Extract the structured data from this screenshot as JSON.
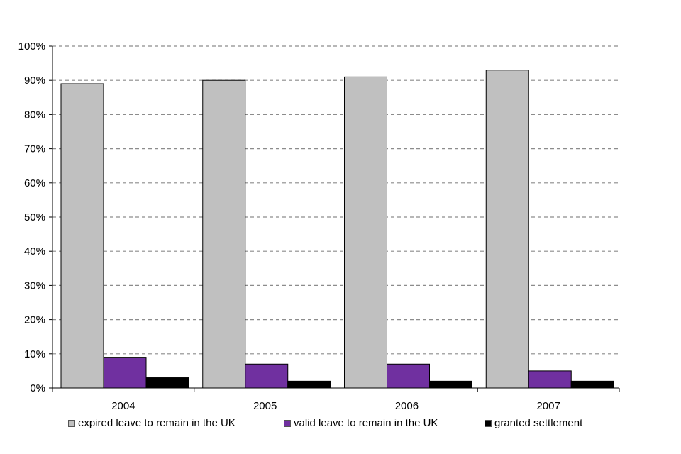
{
  "chart_data": {
    "type": "bar",
    "categories": [
      "2004",
      "2005",
      "2006",
      "2007"
    ],
    "series": [
      {
        "name": "expired leave to remain in the UK",
        "values": [
          89,
          90,
          91,
          93
        ],
        "color": "#c0c0c0"
      },
      {
        "name": "valid leave to remain in the UK",
        "values": [
          9,
          7,
          7,
          5
        ],
        "color": "#7030a0"
      },
      {
        "name": "granted settlement",
        "values": [
          3,
          2,
          2,
          2
        ],
        "color": "#000000"
      }
    ],
    "ylim": [
      0,
      100
    ],
    "yticks": [
      "0%",
      "10%",
      "20%",
      "30%",
      "40%",
      "50%",
      "60%",
      "70%",
      "80%",
      "90%",
      "100%"
    ],
    "grid": true,
    "legend_position": "bottom",
    "title": "",
    "xlabel": "",
    "ylabel": ""
  }
}
